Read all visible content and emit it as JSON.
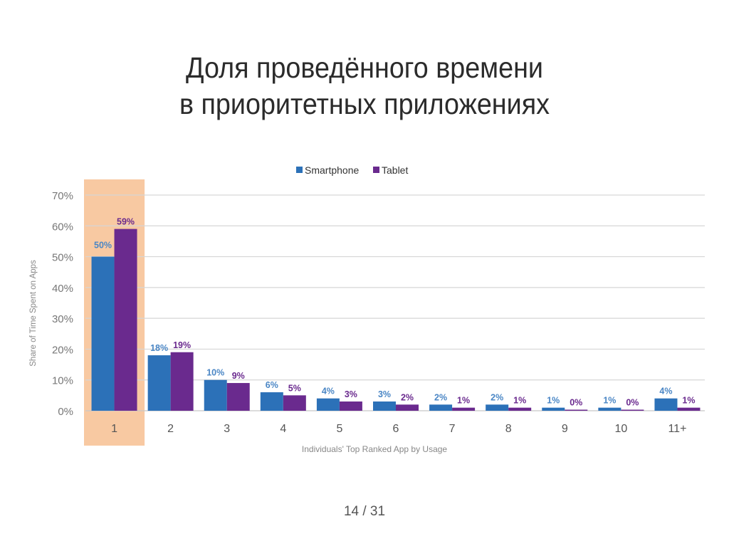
{
  "title_lines": [
    "Доля проведённого времени",
    "в приоритетных приложениях"
  ],
  "page_indicator": "14 / 31",
  "chart_data": {
    "type": "bar",
    "title": "",
    "xlabel": "Individuals' Top Ranked App by Usage",
    "ylabel": "Share of Time Spent on Apps",
    "ylim": [
      0,
      70
    ],
    "yticks": [
      "0%",
      "10%",
      "20%",
      "30%",
      "40%",
      "50%",
      "60%",
      "70%"
    ],
    "grid": true,
    "legend_position": "top-center",
    "highlight_category": "1",
    "highlight_color": "#f8c9a2",
    "categories": [
      "1",
      "2",
      "3",
      "4",
      "5",
      "6",
      "7",
      "8",
      "9",
      "10",
      "11+"
    ],
    "series": [
      {
        "name": "Smartphone",
        "color": "#2c71b8",
        "values": [
          50,
          18,
          10,
          6,
          4,
          3,
          2,
          2,
          1,
          1,
          4
        ],
        "labels": [
          "50%",
          "18%",
          "10%",
          "6%",
          "4%",
          "3%",
          "2%",
          "2%",
          "1%",
          "1%",
          "4%"
        ]
      },
      {
        "name": "Tablet",
        "color": "#6a2a8e",
        "values": [
          59,
          19,
          9,
          5,
          3,
          2,
          1,
          1,
          0,
          0,
          1
        ],
        "labels": [
          "59%",
          "19%",
          "9%",
          "5%",
          "3%",
          "2%",
          "1%",
          "1%",
          "0%",
          "0%",
          "1%"
        ]
      }
    ]
  }
}
